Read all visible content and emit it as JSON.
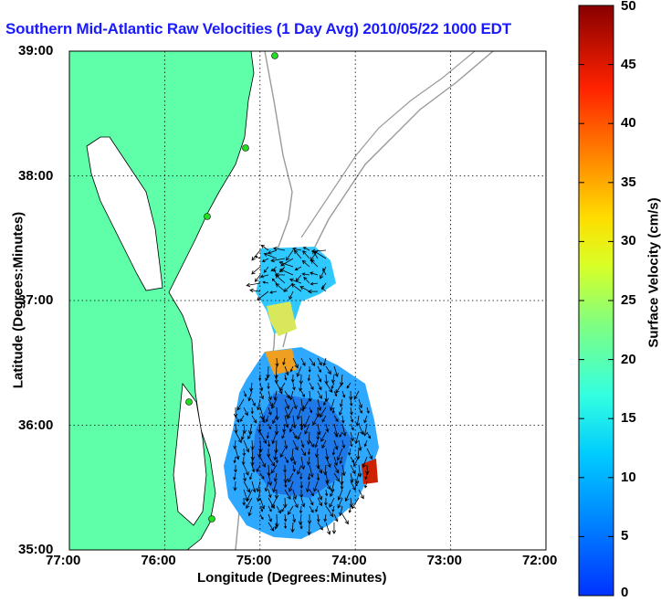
{
  "title": "Southern Mid-Atlantic Raw Velocities (1 Day Avg) 2010/05/22 1000 EDT",
  "chart_data": {
    "type": "heatmap",
    "xlabel": "Longitude (Degrees:Minutes)",
    "ylabel": "Latitude (Degrees:Minutes)",
    "x_ticks": [
      "77:00",
      "76:00",
      "75:00",
      "74:00",
      "73:00",
      "72:00"
    ],
    "y_ticks": [
      "39:00",
      "38:00",
      "37:00",
      "36:00",
      "35:00"
    ],
    "xlim": [
      -77,
      -72
    ],
    "ylim": [
      35,
      39
    ],
    "grid": "dotted",
    "colorbar": {
      "label": "Surface Velocity (cm/s)",
      "ticks": [
        "50",
        "45",
        "40",
        "35",
        "30",
        "25",
        "20",
        "15",
        "10",
        "5",
        "0"
      ],
      "range": [
        0,
        50
      ]
    },
    "colors": {
      "land": "#5effa8",
      "contour": "#9a9a9a",
      "arrow": "#000000",
      "site": "#22dd22"
    }
  }
}
